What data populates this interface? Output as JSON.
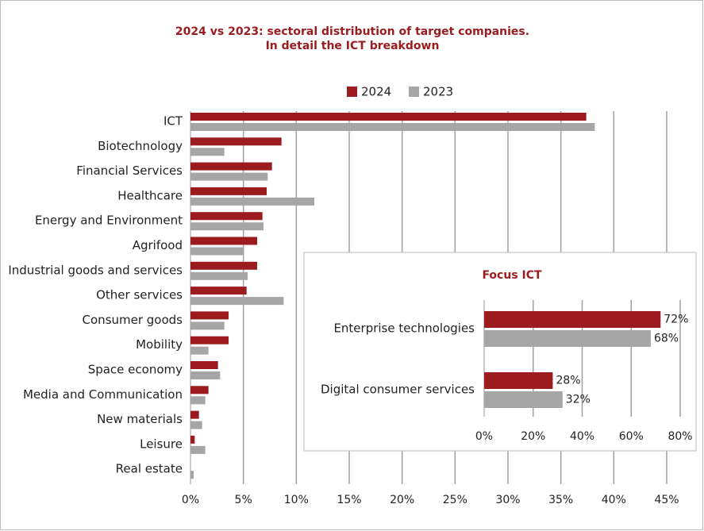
{
  "chart_data": [
    {
      "type": "bar",
      "orientation": "horizontal",
      "title": "2024 vs 2023: sectoral distribution of target companies.",
      "subtitle": "In detail the ICT breakdown",
      "categories": [
        "ICT",
        "Biotechnology",
        "Financial Services",
        "Healthcare",
        "Energy and Environment",
        "Agrifood",
        "Industrial goods and services",
        "Other services",
        "Consumer goods",
        "Mobility",
        "Space economy",
        "Media and Communication",
        "New materials",
        "Leisure",
        "Real estate"
      ],
      "series": [
        {
          "name": "2024",
          "color": "#9b1b1e",
          "values": [
            37.4,
            8.6,
            7.7,
            7.2,
            6.8,
            6.3,
            6.3,
            5.3,
            3.6,
            3.6,
            2.6,
            1.7,
            0.8,
            0.4,
            0
          ]
        },
        {
          "name": "2023",
          "color": "#a6a6a6",
          "values": [
            38.2,
            3.2,
            7.3,
            11.7,
            6.9,
            5.0,
            5.4,
            8.8,
            3.2,
            1.7,
            2.8,
            1.4,
            1.1,
            1.4,
            0.3
          ]
        }
      ],
      "xlim": [
        0,
        45
      ],
      "xticks": [
        {
          "value": 0,
          "label": "0%"
        },
        {
          "value": 5,
          "label": "5%"
        },
        {
          "value": 10,
          "label": "10%"
        },
        {
          "value": 15,
          "label": "15%"
        },
        {
          "value": 20,
          "label": "20%"
        },
        {
          "value": 25,
          "label": "25%"
        },
        {
          "value": 30,
          "label": "30%"
        },
        {
          "value": 35,
          "label": "35%"
        },
        {
          "value": 40,
          "label": "40%"
        },
        {
          "value": 45,
          "label": "45%"
        }
      ],
      "grid": true,
      "legend": "top"
    },
    {
      "type": "bar",
      "orientation": "horizontal",
      "title": "Focus ICT",
      "categories": [
        "Enterprise technologies",
        "Digital consumer services"
      ],
      "series": [
        {
          "name": "2024",
          "color": "#9b1b1e",
          "values": [
            72,
            28
          ],
          "value_labels": [
            "72%",
            "28%"
          ]
        },
        {
          "name": "2023",
          "color": "#a6a6a6",
          "values": [
            68,
            32
          ],
          "value_labels": [
            "68%",
            "32%"
          ]
        }
      ],
      "xlim": [
        0,
        80
      ],
      "xticks": [
        {
          "value": 0,
          "label": "0%"
        },
        {
          "value": 20,
          "label": "20%"
        },
        {
          "value": 40,
          "label": "40%"
        },
        {
          "value": 60,
          "label": "60%"
        },
        {
          "value": 80,
          "label": "80%"
        }
      ],
      "grid": true
    }
  ]
}
